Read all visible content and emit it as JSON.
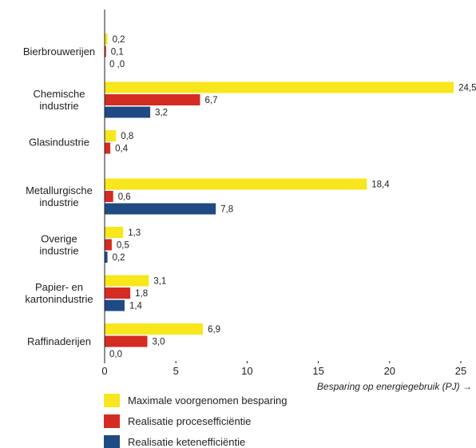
{
  "chart_data": {
    "type": "bar",
    "orientation": "horizontal",
    "categories": [
      "Bierbrouwerijen",
      "Chemische\nindustrie",
      "Glasindustrie",
      "Metallurgische\nindustrie",
      "Overige\nindustrie",
      "Papier- en\nkartonindustrie",
      "Raffinaderijen"
    ],
    "series": [
      {
        "name": "Maximale voorgenomen besparing",
        "color": "#f7e71c",
        "values": [
          0.2,
          24.5,
          0.8,
          18.4,
          1.3,
          3.1,
          6.9
        ],
        "labels": [
          "0,2",
          "24,5",
          "0,8",
          "18,4",
          "1,3",
          "3,1",
          "6,9"
        ]
      },
      {
        "name": "Realisatie procesefficiëntie",
        "color": "#d42b22",
        "values": [
          0.1,
          6.7,
          0.4,
          0.6,
          0.5,
          1.8,
          3.0
        ],
        "labels": [
          "0,1",
          "6,7",
          "0,4",
          "0,6",
          "0,5",
          "1,8",
          "3,0"
        ]
      },
      {
        "name": "Realisatie ketenefficiëntie",
        "color": "#1f4a84",
        "values": [
          0.0,
          3.2,
          null,
          7.8,
          0.2,
          1.4,
          0.0
        ],
        "labels": [
          "0 ,0",
          "3,2",
          null,
          "7,8",
          "0,2",
          "1,4",
          "0,0"
        ]
      }
    ],
    "xlim": [
      0,
      25
    ],
    "xticks": [
      0,
      5,
      10,
      15,
      20,
      25
    ],
    "xlabel": "Besparing op energiegebruik (PJ) →",
    "legend_position": "bottom-left"
  }
}
